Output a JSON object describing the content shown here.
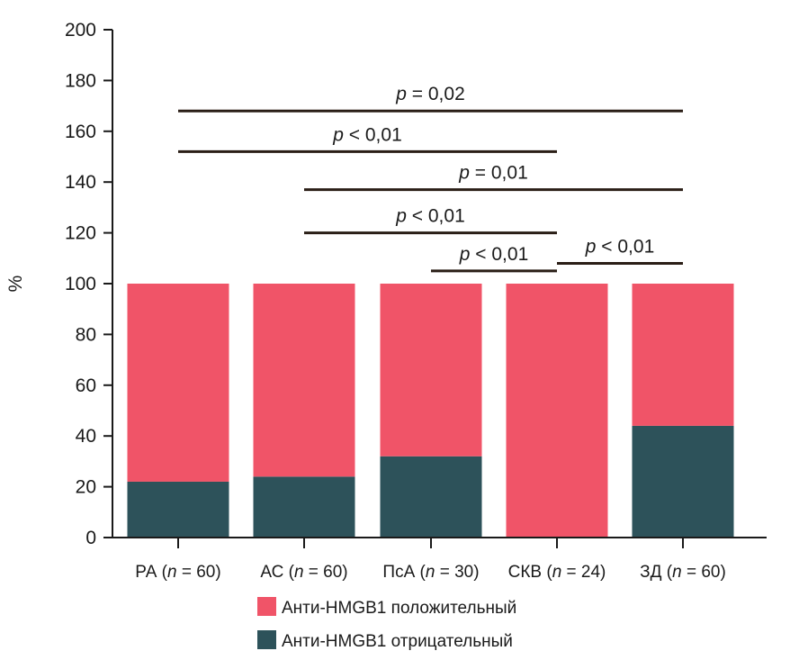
{
  "chart_data": {
    "type": "bar",
    "stacked": true,
    "categories": [
      {
        "name": "РА",
        "n": "60"
      },
      {
        "name": "АС",
        "n": "60"
      },
      {
        "name": "ПсА",
        "n": "30"
      },
      {
        "name": "СКВ",
        "n": "24"
      },
      {
        "name": "ЗД",
        "n": "60"
      }
    ],
    "n_prefix": "n",
    "series": [
      {
        "name": "Анти-HMGB1 отрицательный",
        "color": "#2d525a",
        "values": [
          22,
          24,
          32,
          0,
          44
        ]
      },
      {
        "name": "Анти-HMGB1 положительный",
        "color": "#f05468",
        "values": [
          78,
          76,
          68,
          100,
          56
        ]
      }
    ],
    "ylabel": "%",
    "xlabel": "",
    "ylim": [
      0,
      200
    ],
    "yticks": [
      0,
      20,
      40,
      60,
      80,
      100,
      120,
      140,
      160,
      180,
      200
    ],
    "legend_position": "bottom",
    "legend_order": [
      1,
      0
    ],
    "significance": [
      {
        "from": 0,
        "to": 4,
        "y": 168,
        "p_symbol": "p",
        "op": "=",
        "value": "0,02"
      },
      {
        "from": 0,
        "to": 3,
        "y": 152,
        "p_symbol": "p",
        "op": "<",
        "value": "0,01"
      },
      {
        "from": 1,
        "to": 4,
        "y": 137,
        "p_symbol": "p",
        "op": "=",
        "value": "0,01"
      },
      {
        "from": 1,
        "to": 3,
        "y": 120,
        "p_symbol": "p",
        "op": "<",
        "value": "0,01"
      },
      {
        "from": 2,
        "to": 3,
        "y": 105,
        "p_symbol": "p",
        "op": "<",
        "value": "0,01"
      },
      {
        "from": 3,
        "to": 4,
        "y": 108,
        "p_symbol": "p",
        "op": "<",
        "value": "0,01"
      }
    ],
    "grid": false
  }
}
